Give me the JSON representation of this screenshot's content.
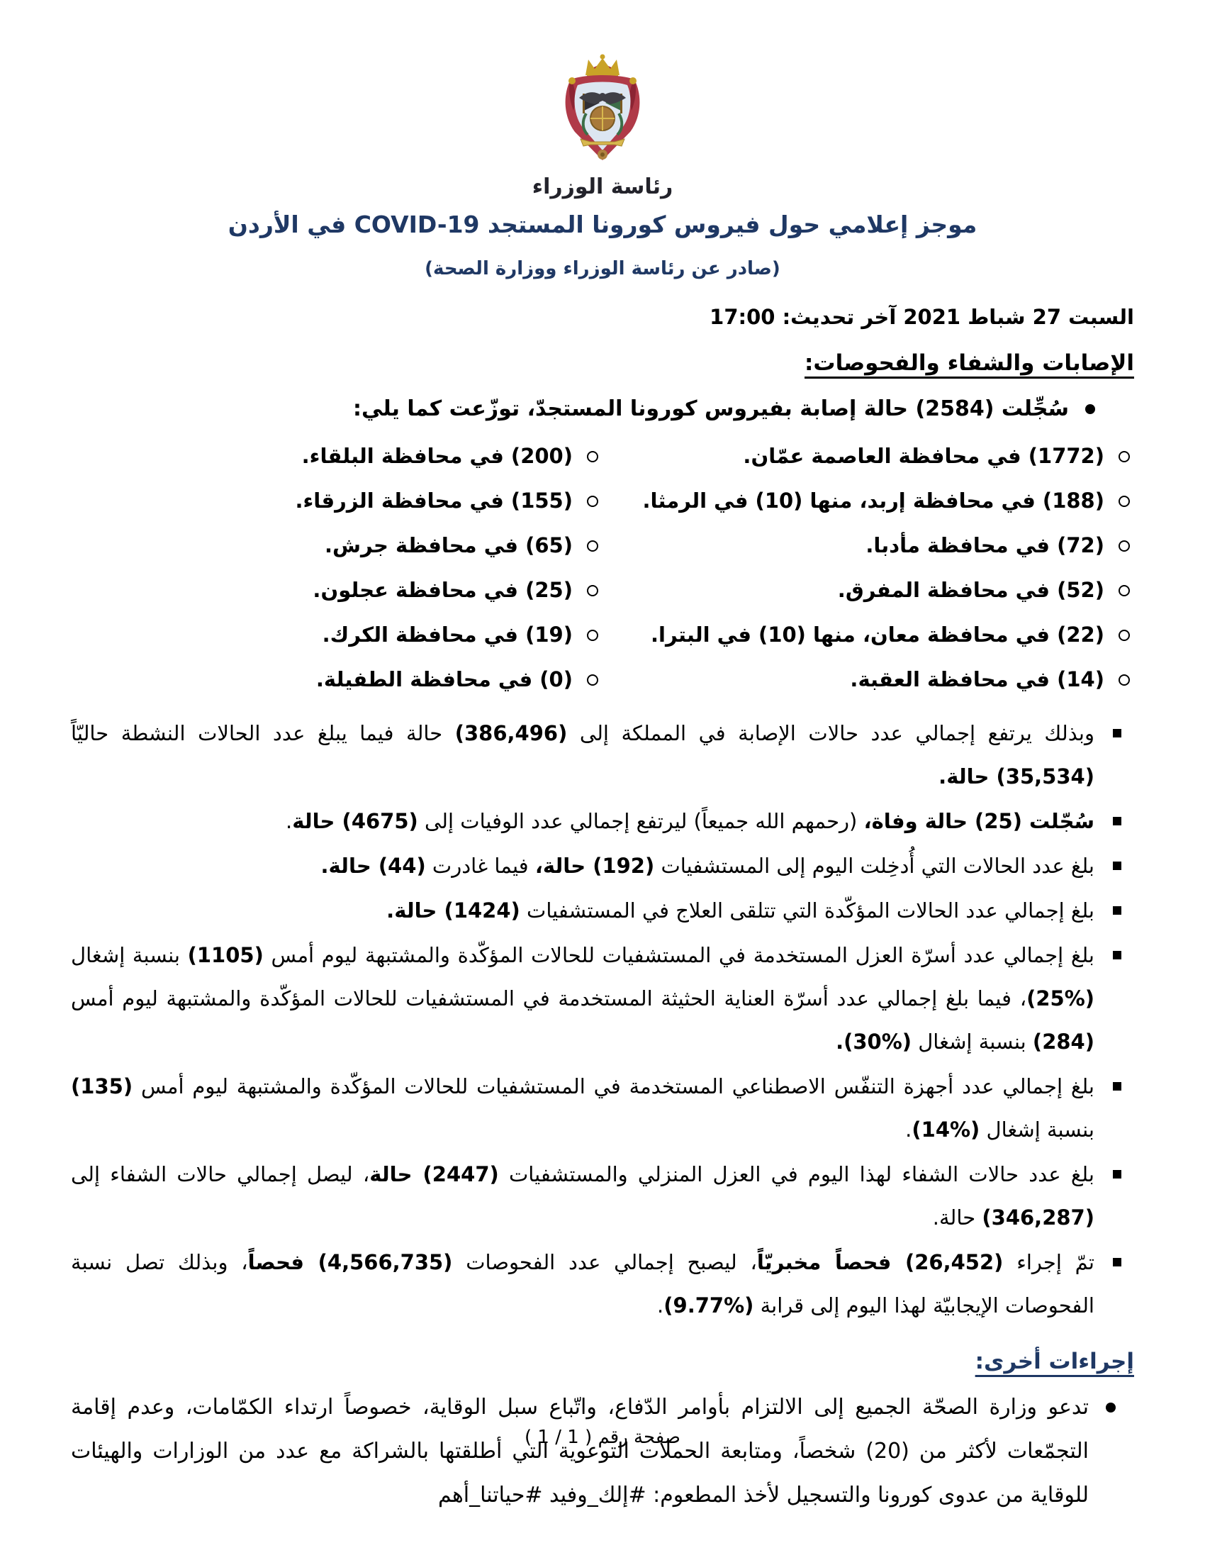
{
  "page": {
    "title": "موجز إعلامي حول فيروس كورونا المستجد COVID-19 في الأردن",
    "subtitle": "(صادر عن رئاسة الوزراء ووزارة الصحة)",
    "date_line": "السبت 27 شباط 2021 آخر تحديث: 17:00",
    "logo_caption": "رئاسة الوزراء",
    "footer": "صفحة رقم ( 1 / 1 )"
  },
  "colors": {
    "title_navy": "#1f3864",
    "body_text": "#000000",
    "crest_red": "#a32638",
    "crest_gold": "#c9a227"
  },
  "section1": {
    "heading": "الإصابات والشفاء والفحوصات:",
    "intro": "سُجِّلت (2584) حالة إصابة بفيروس كورونا المستجدّ، توزّعت كما يلي:",
    "governorates": [
      "(1772) في محافظة العاصمة عمّان.",
      "(200) في محافظة البلقاء.",
      "(188) في محافظة إربد، منها (10) في الرمثا.",
      "(155) في محافظة الزرقاء.",
      "(72) في محافظة مأدبا.",
      "(65) في محافظة جرش.",
      "(52) في محافظة المفرق.",
      "(25) في محافظة عجلون.",
      "(22) في محافظة معان، منها (10) في البترا.",
      "(19) في محافظة الكرك.",
      "(14) في محافظة العقبة.",
      "(0) في محافظة الطفيلة."
    ]
  },
  "stats": [
    [
      {
        "t": "وبذلك يرتفع إجمالي عدد حالات الإصابة في المملكة إلى ",
        "b": false
      },
      {
        "t": "(386,496)",
        "b": true
      },
      {
        "t": " حالة فيما يبلغ عدد الحالات النشطة حاليّاً ",
        "b": false
      },
      {
        "t": "(35,534) حالة.",
        "b": true
      }
    ],
    [
      {
        "t": "سُجّلت (25) حالة وفاة،",
        "b": true
      },
      {
        "t": " (رحمهم الله جميعاً) ليرتفع إجمالي عدد الوفيات إلى ",
        "b": false
      },
      {
        "t": "(4675) حالة",
        "b": true
      },
      {
        "t": ".",
        "b": false
      }
    ],
    [
      {
        "t": "بلغ عدد الحالات التي أُدخِلت اليوم إلى المستشفيات ",
        "b": false
      },
      {
        "t": "(192) حالة،",
        "b": true
      },
      {
        "t": " فيما غادرت ",
        "b": false
      },
      {
        "t": "(44) حالة.",
        "b": true
      }
    ],
    [
      {
        "t": "بلغ إجمالي عدد الحالات المؤكّدة التي تتلقى العلاج في المستشفيات ",
        "b": false
      },
      {
        "t": "(1424) حالة.",
        "b": true
      }
    ],
    [
      {
        "t": "بلغ إجمالي عدد أسرّة العزل المستخدمة في المستشفيات للحالات المؤكّدة والمشتبهة ليوم أمس ",
        "b": false
      },
      {
        "t": "(1105)",
        "b": true
      },
      {
        "t": " بنسبة إشغال ",
        "b": false
      },
      {
        "t": "(%25)",
        "b": true
      },
      {
        "t": "، فيما بلغ إجمالي عدد أسرّة العناية الحثيثة المستخدمة في المستشفيات للحالات المؤكّدة والمشتبهة ليوم أمس ",
        "b": false
      },
      {
        "t": "(284)",
        "b": true
      },
      {
        "t": " بنسبة إشغال ",
        "b": false
      },
      {
        "t": "(%30).",
        "b": true
      }
    ],
    [
      {
        "t": "بلغ إجمالي عدد أجهزة التنفّس الاصطناعي المستخدمة في المستشفيات للحالات المؤكّدة والمشتبهة ليوم أمس ",
        "b": false
      },
      {
        "t": "(135)",
        "b": true
      },
      {
        "t": " بنسبة إشغال ",
        "b": false
      },
      {
        "t": "(%14)",
        "b": true
      },
      {
        "t": ".",
        "b": false
      }
    ],
    [
      {
        "t": "بلغ عدد حالات الشفاء لهذا اليوم في العزل المنزلي والمستشفيات ",
        "b": false
      },
      {
        "t": "(2447) حالة",
        "b": true
      },
      {
        "t": "، ليصل إجمالي حالات الشفاء إلى ",
        "b": false
      },
      {
        "t": "(346,287)",
        "b": true
      },
      {
        "t": " حالة.",
        "b": false
      }
    ],
    [
      {
        "t": "تمّ إجراء ",
        "b": false
      },
      {
        "t": "(26,452) فحصاً مخبريّاً",
        "b": true
      },
      {
        "t": "، ليصبح إجمالي عدد الفحوصات ",
        "b": false
      },
      {
        "t": "(4,566,735) فحصاً",
        "b": true
      },
      {
        "t": "، وبذلك تصل نسبة الفحوصات الإيجابيّة لهذا اليوم إلى قرابة ",
        "b": false
      },
      {
        "t": "(%9.77)",
        "b": true
      },
      {
        "t": ".",
        "b": false
      }
    ]
  ],
  "section2": {
    "heading": "إجراءات أخرى:",
    "bullet": "تدعو وزارة الصحّة الجميع إلى الالتزام بأوامر الدّفاع، واتّباع سبل الوقاية، خصوصاً ارتداء الكمّامات، وعدم إقامة التجمّعات لأكثر من (20) شخصاً، ومتابعة الحملات التوعوية التي أطلقتها بالشراكة مع عدد من الوزارات والهيئات للوقاية من عدوى كورونا والتسجيل لأخذ المطعوم: #إلك_وفيد #حياتنا_أهم"
  }
}
